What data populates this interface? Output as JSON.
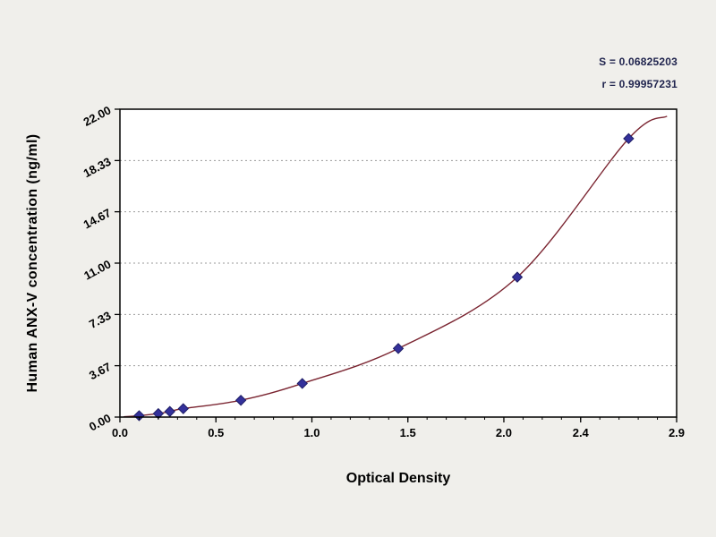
{
  "chart_data": {
    "type": "scatter",
    "xlabel": "Optical Density",
    "ylabel": "Human ANX-V concentration (ng/ml)",
    "xlim": [
      0.0,
      2.9
    ],
    "ylim": [
      0.0,
      22.0
    ],
    "x_ticks": [
      0.0,
      0.5,
      1.0,
      1.5,
      2.0,
      2.4,
      2.9
    ],
    "x_tick_labels": [
      "0.0",
      "0.5",
      "1.0",
      "1.5",
      "2.0",
      "2.4",
      "2.9"
    ],
    "x_minor_tick_step": 0.1,
    "y_ticks": [
      0.0,
      3.67,
      7.33,
      11.0,
      14.67,
      18.33,
      22.0
    ],
    "y_tick_labels": [
      "0.00",
      "3.67",
      "7.33",
      "11.00",
      "14.67",
      "18.33",
      "22.00"
    ],
    "grid": "horizontal-dotted",
    "legend": "none",
    "annotations": [
      "S = 0.06825203",
      "r = 0.99957231"
    ],
    "points": [
      {
        "x": 0.1,
        "y": 0.1
      },
      {
        "x": 0.2,
        "y": 0.25
      },
      {
        "x": 0.26,
        "y": 0.4
      },
      {
        "x": 0.33,
        "y": 0.6
      },
      {
        "x": 0.63,
        "y": 1.2
      },
      {
        "x": 0.95,
        "y": 2.4
      },
      {
        "x": 1.45,
        "y": 4.9
      },
      {
        "x": 2.07,
        "y": 10.0
      },
      {
        "x": 2.65,
        "y": 19.9
      }
    ],
    "curve_extent": {
      "start": {
        "x": 0.02,
        "y": 0.02
      },
      "end": {
        "x": 2.85,
        "y": 21.5
      }
    },
    "colors": {
      "marker": "#34319b",
      "marker_edge": "#1f1e66",
      "curve": "#7a2430",
      "grid": "#999999",
      "frame": "#000000",
      "plot_bg": "#ffffff",
      "page_bg": "#f0efeb"
    }
  }
}
